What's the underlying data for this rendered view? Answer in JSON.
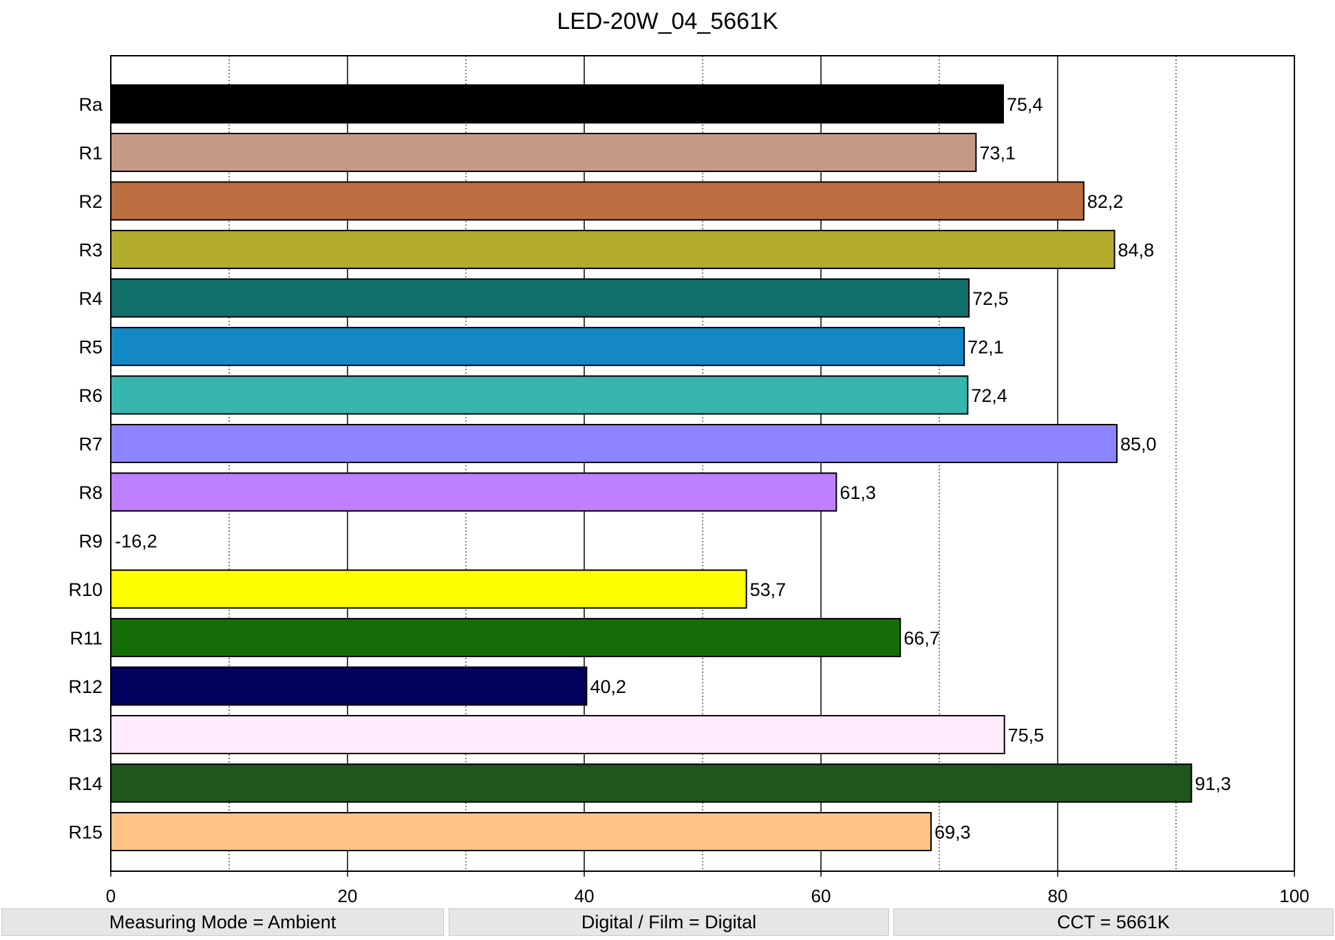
{
  "chart_data": {
    "type": "bar",
    "orientation": "horizontal",
    "title": "LED-20W_04_5661K",
    "xlabel": "",
    "ylabel": "",
    "xlim": [
      0,
      100
    ],
    "x_ticks": [
      0,
      20,
      40,
      60,
      80,
      100
    ],
    "x_tick_labels": [
      "0",
      "20",
      "40",
      "60",
      "80",
      "100"
    ],
    "minor_gridlines": [
      10,
      30,
      50,
      70,
      90
    ],
    "grid": true,
    "categories": [
      "Ra",
      "R1",
      "R2",
      "R3",
      "R4",
      "R5",
      "R6",
      "R7",
      "R8",
      "R9",
      "R10",
      "R11",
      "R12",
      "R13",
      "R14",
      "R15"
    ],
    "values": [
      75.4,
      73.1,
      82.2,
      84.8,
      72.5,
      72.1,
      72.4,
      85.0,
      61.3,
      -16.2,
      53.7,
      66.7,
      40.2,
      75.5,
      91.3,
      69.3
    ],
    "value_labels": [
      "75,4",
      "73,1",
      "82,2",
      "84,8",
      "72,5",
      "72,1",
      "72,4",
      "85,0",
      "61,3",
      "-16,2",
      "53,7",
      "66,7",
      "40,2",
      "75,5",
      "91,3",
      "69,3"
    ],
    "colors": [
      "#000000",
      "#c49a87",
      "#bc6f41",
      "#b2ab2e",
      "#117069",
      "#1488c4",
      "#37b6ad",
      "#8e84ff",
      "#bf80ff",
      "#ff0000",
      "#ffff00",
      "#146d06",
      "#02025e",
      "#ffebfa",
      "#1e561b",
      "#ffc287"
    ]
  },
  "footer": {
    "measuring_mode": "Measuring Mode = Ambient",
    "digital_film": "Digital / Film = Digital",
    "cct": "CCT = 5661K"
  }
}
